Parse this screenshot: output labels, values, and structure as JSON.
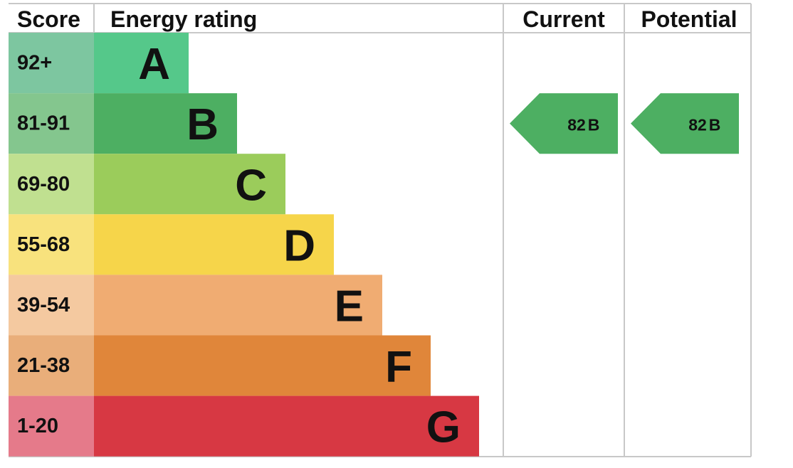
{
  "header": {
    "score": "Score",
    "energy_rating": "Energy rating",
    "current": "Current",
    "potential": "Potential"
  },
  "bands": [
    {
      "score": "92+",
      "letter": "A",
      "color": "#55c88a",
      "score_color": "#7dc6a0"
    },
    {
      "score": "81-91",
      "letter": "B",
      "color": "#4daf62",
      "score_color": "#84c68e"
    },
    {
      "score": "69-80",
      "letter": "C",
      "color": "#9bcc5b",
      "score_color": "#c0e090"
    },
    {
      "score": "55-68",
      "letter": "D",
      "color": "#f6d54a",
      "score_color": "#f8e27d"
    },
    {
      "score": "39-54",
      "letter": "E",
      "color": "#f0ac72",
      "score_color": "#f4c9a0"
    },
    {
      "score": "21-38",
      "letter": "F",
      "color": "#e0863a",
      "score_color": "#e9ae7a"
    },
    {
      "score": "1-20",
      "letter": "G",
      "color": "#d73843",
      "score_color": "#e57a8a"
    }
  ],
  "current": {
    "score": "82",
    "letter": "B"
  },
  "potential": {
    "score": "82",
    "letter": "B"
  }
}
